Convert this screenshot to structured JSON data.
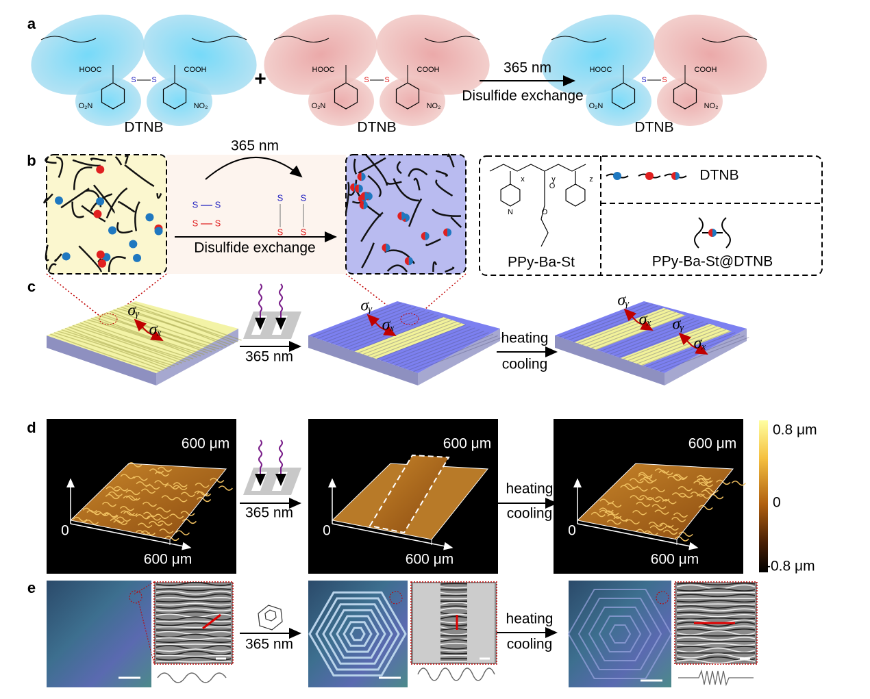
{
  "panel_a": {
    "label": "a",
    "left_name": "DTNB",
    "middle_name": "DTNB",
    "right_name": "DTNB",
    "plus": "+",
    "arrow_top": "365 nm",
    "arrow_bottom": "Disulfide exchange",
    "groups": {
      "hooc": "HOOC",
      "cooh": "COOH",
      "o2n": "O₂N",
      "no2": "NO₂",
      "sulfur": "S"
    }
  },
  "panel_b": {
    "label": "b",
    "arrow_top": "365 nm",
    "arrow_bottom": "Disulfide exchange",
    "sulfur": "S",
    "subscripts": [
      "x",
      "y",
      "z"
    ],
    "nitrogen": "N",
    "oxygen": "O",
    "legend_dtnb": "DTNB",
    "polymer": "PPy-Ba-St",
    "composite": "PPy-Ba-St@DTNB"
  },
  "panel_c": {
    "label": "c",
    "stress_y": "σᵧ",
    "stress_x": "σₓ",
    "arrow_1": "365 nm",
    "arrow_2_top": "heating",
    "arrow_2_bottom": "cooling"
  },
  "panel_d": {
    "label": "d",
    "scale": "600 μm",
    "origin": "0",
    "arrow_1": "365 nm",
    "arrow_2_top": "heating",
    "arrow_2_bottom": "cooling",
    "colorbar": {
      "max_label": "0.8 μm",
      "mid_label": "0",
      "min_label": "-0.8 μm"
    }
  },
  "panel_e": {
    "label": "e",
    "arrow_1": "365 nm",
    "arrow_2_top": "heating",
    "arrow_2_bottom": "cooling"
  }
}
